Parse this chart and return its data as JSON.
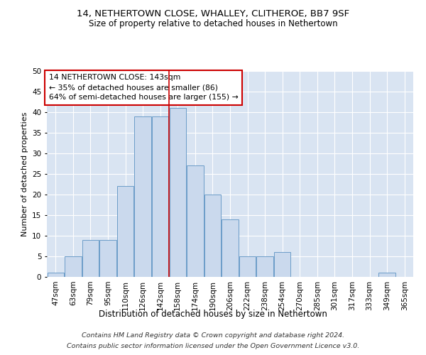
{
  "title1": "14, NETHERTOWN CLOSE, WHALLEY, CLITHEROE, BB7 9SF",
  "title2": "Size of property relative to detached houses in Nethertown",
  "xlabel": "Distribution of detached houses by size in Nethertown",
  "ylabel": "Number of detached properties",
  "footnote1": "Contains HM Land Registry data © Crown copyright and database right 2024.",
  "footnote2": "Contains public sector information licensed under the Open Government Licence v3.0.",
  "annotation_line1": "14 NETHERTOWN CLOSE: 143sqm",
  "annotation_line2": "← 35% of detached houses are smaller (86)",
  "annotation_line3": "64% of semi-detached houses are larger (155) →",
  "bar_color": "#cad9ed",
  "bar_edge_color": "#6b9cc8",
  "ref_line_color": "#cc0000",
  "annotation_box_color": "#ffffff",
  "annotation_box_edge": "#cc0000",
  "background_color": "#d9e4f2",
  "plot_bg_color": "#d9e4f2",
  "categories": [
    "47sqm",
    "63sqm",
    "79sqm",
    "95sqm",
    "110sqm",
    "126sqm",
    "142sqm",
    "158sqm",
    "174sqm",
    "190sqm",
    "206sqm",
    "222sqm",
    "238sqm",
    "254sqm",
    "270sqm",
    "285sqm",
    "301sqm",
    "317sqm",
    "333sqm",
    "349sqm",
    "365sqm"
  ],
  "values": [
    1,
    5,
    9,
    9,
    22,
    39,
    39,
    41,
    27,
    20,
    14,
    5,
    5,
    6,
    0,
    0,
    0,
    0,
    0,
    1,
    0
  ],
  "ref_line_x": 6.5,
  "ylim": [
    0,
    50
  ],
  "yticks": [
    0,
    5,
    10,
    15,
    20,
    25,
    30,
    35,
    40,
    45,
    50
  ],
  "title1_fontsize": 9.5,
  "title2_fontsize": 8.5,
  "ylabel_fontsize": 8,
  "xlabel_fontsize": 8.5,
  "tick_fontsize": 7.5,
  "annotation_fontsize": 7.8,
  "footnote_fontsize": 6.8
}
